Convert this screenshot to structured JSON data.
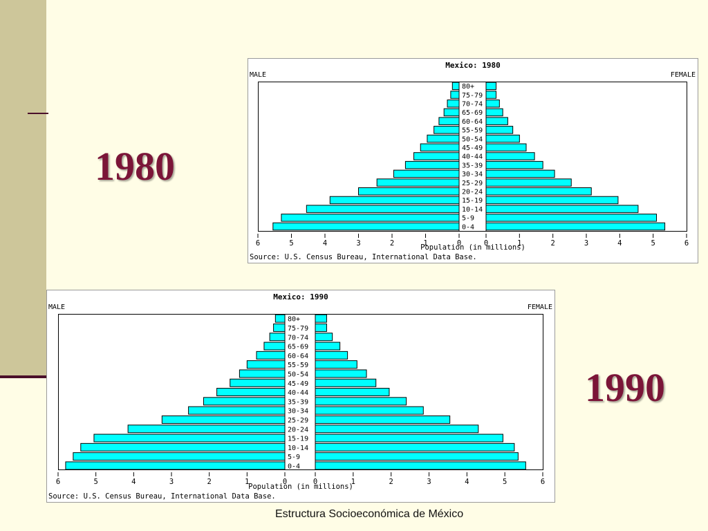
{
  "slide": {
    "year_1980": "1980",
    "year_1990": "1990",
    "footer": "Estructura Socioeconómica de México",
    "colors": {
      "background": "#fffde6",
      "side_band": "#cdc69a",
      "accent": "#7b1538",
      "bar_fill": "#00ffff"
    }
  },
  "chart_data": [
    {
      "type": "bar",
      "orientation": "horizontal",
      "layout": "population-pyramid",
      "title": "Mexico: 1980",
      "left_label": "MALE",
      "right_label": "FEMALE",
      "xlabel": "Population (in millions)",
      "source": "Source: U.S. Census Bureau, International Data Base.",
      "xlim": [
        0,
        6
      ],
      "xticks": [
        "0",
        "1",
        "2",
        "3",
        "4",
        "5",
        "6"
      ],
      "grid": false,
      "categories": [
        "80+",
        "75-79",
        "70-74",
        "65-69",
        "60-64",
        "55-59",
        "50-54",
        "45-49",
        "40-44",
        "35-39",
        "30-34",
        "25-29",
        "20-24",
        "15-19",
        "10-14",
        "5-9",
        "0-4"
      ],
      "series": [
        {
          "name": "MALE",
          "values": [
            0.2,
            0.25,
            0.35,
            0.45,
            0.6,
            0.75,
            0.95,
            1.15,
            1.35,
            1.6,
            1.95,
            2.45,
            3.0,
            3.85,
            4.55,
            5.3,
            5.55
          ]
        },
        {
          "name": "FEMALE",
          "values": [
            0.3,
            0.3,
            0.4,
            0.5,
            0.65,
            0.8,
            1.0,
            1.2,
            1.45,
            1.7,
            2.05,
            2.55,
            3.15,
            3.95,
            4.55,
            5.1,
            5.35
          ]
        }
      ]
    },
    {
      "type": "bar",
      "orientation": "horizontal",
      "layout": "population-pyramid",
      "title": "Mexico: 1990",
      "left_label": "MALE",
      "right_label": "FEMALE",
      "xlabel": "Population (in millions)",
      "source": "Source: U.S. Census Bureau, International Data Base.",
      "xlim": [
        0,
        6
      ],
      "xticks": [
        "0",
        "1",
        "2",
        "3",
        "4",
        "5",
        "6"
      ],
      "grid": false,
      "categories": [
        "80+",
        "75-79",
        "70-74",
        "65-69",
        "60-64",
        "55-59",
        "50-54",
        "45-49",
        "40-44",
        "35-39",
        "30-34",
        "25-29",
        "20-24",
        "15-19",
        "10-14",
        "5-9",
        "0-4"
      ],
      "series": [
        {
          "name": "MALE",
          "values": [
            0.25,
            0.3,
            0.4,
            0.55,
            0.75,
            1.0,
            1.2,
            1.45,
            1.8,
            2.15,
            2.55,
            3.25,
            4.15,
            5.05,
            5.4,
            5.6,
            5.8
          ]
        },
        {
          "name": "FEMALE",
          "values": [
            0.3,
            0.3,
            0.45,
            0.65,
            0.85,
            1.1,
            1.35,
            1.6,
            1.95,
            2.4,
            2.85,
            3.55,
            4.3,
            4.95,
            5.25,
            5.35,
            5.55
          ]
        }
      ]
    }
  ]
}
